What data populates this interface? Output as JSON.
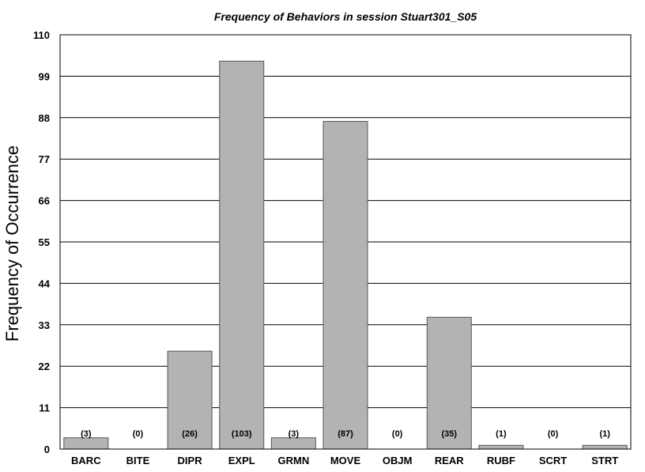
{
  "chart_data": {
    "type": "bar",
    "title": "Frequency of Behaviors in session Stuart301_S05",
    "xlabel": "",
    "ylabel": "Frequency of Occurrence",
    "categories": [
      "BARC",
      "BITE",
      "DIPR",
      "EXPL",
      "GRMN",
      "MOVE",
      "OBJM",
      "REAR",
      "RUBF",
      "SCRT",
      "STRT"
    ],
    "values": [
      3,
      0,
      26,
      103,
      3,
      87,
      0,
      35,
      1,
      0,
      1
    ],
    "data_labels": [
      "(3)",
      "(0)",
      "(26)",
      "(103)",
      "(3)",
      "(87)",
      "(0)",
      "(35)",
      "(1)",
      "(0)",
      "(1)"
    ],
    "yticks": [
      0,
      11,
      22,
      33,
      44,
      55,
      66,
      77,
      88,
      99,
      110
    ],
    "ylim": [
      0,
      110
    ],
    "grid": true,
    "legend": "none",
    "colors": {
      "bar": "#b3b3b3",
      "bar_edge": "#555555",
      "grid": "#000000"
    }
  }
}
